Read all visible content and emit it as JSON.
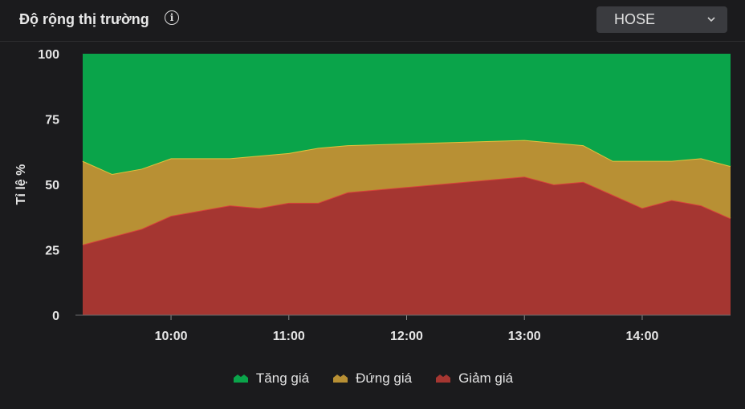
{
  "header": {
    "title": "Độ rộng thị trường",
    "info_icon": "info-icon",
    "exchange_select": "HOSE"
  },
  "legend": [
    {
      "label": "Tăng giá",
      "color": "#0aa44a"
    },
    {
      "label": "Đứng giá",
      "color": "#b89034"
    },
    {
      "label": "Giảm giá",
      "color": "#a53631"
    }
  ],
  "chart_data": {
    "type": "area",
    "stacked": true,
    "ylabel": "Tỉ lệ %",
    "ylim": [
      0,
      100
    ],
    "yticks": [
      "0",
      "25",
      "50",
      "75",
      "100"
    ],
    "xticks": [
      "10:00",
      "11:00",
      "12:00",
      "13:00",
      "14:00"
    ],
    "xlim": [
      "09:15",
      "14:45"
    ],
    "legend_position": "bottom",
    "grid": false,
    "x": [
      "09:15",
      "09:30",
      "09:45",
      "10:00",
      "10:15",
      "10:30",
      "10:45",
      "11:00",
      "11:15",
      "11:30",
      "13:00",
      "13:15",
      "13:30",
      "13:45",
      "14:00",
      "14:15",
      "14:30",
      "14:45"
    ],
    "series": [
      {
        "name": "Giảm giá",
        "color": "#a53631",
        "edge": "#d8423a",
        "values": [
          27,
          30,
          33,
          38,
          40,
          42,
          41,
          43,
          43,
          47,
          53,
          50,
          51,
          46,
          41,
          44,
          42,
          37
        ]
      },
      {
        "name": "Đứng giá",
        "color": "#b89034",
        "edge": "#e2c23c",
        "values": [
          32,
          24,
          23,
          22,
          20,
          18,
          20,
          19,
          21,
          18,
          14,
          16,
          14,
          13,
          18,
          15,
          18,
          20
        ]
      },
      {
        "name": "Tăng giá",
        "color": "#0aa44a",
        "edge": "#0aa44a",
        "values": [
          41,
          46,
          44,
          40,
          40,
          40,
          39,
          38,
          36,
          35,
          33,
          34,
          35,
          41,
          41,
          41,
          40,
          43
        ]
      }
    ]
  }
}
